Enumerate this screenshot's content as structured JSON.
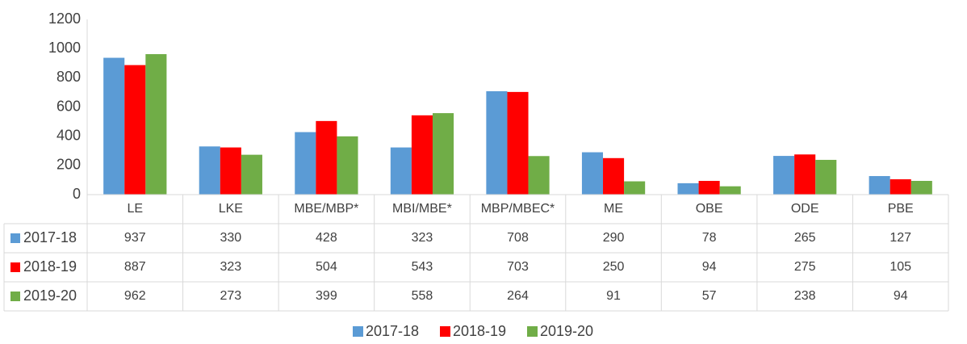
{
  "chart_data": {
    "type": "bar",
    "categories": [
      "LE",
      "LKE",
      "MBE/MBP*",
      "MBI/MBE*",
      "MBP/MBEC*",
      "ME",
      "OBE",
      "ODE",
      "PBE"
    ],
    "series": [
      {
        "name": "2017-18",
        "color": "#5b9bd5",
        "values": [
          937,
          330,
          428,
          323,
          708,
          290,
          78,
          265,
          127
        ]
      },
      {
        "name": "2018-19",
        "color": "#ff0000",
        "values": [
          887,
          323,
          504,
          543,
          703,
          250,
          94,
          275,
          105
        ]
      },
      {
        "name": "2019-20",
        "color": "#70ad47",
        "values": [
          962,
          273,
          399,
          558,
          264,
          91,
          57,
          238,
          94
        ]
      }
    ],
    "ylim": [
      0,
      1200
    ],
    "yticks": [
      0,
      200,
      400,
      600,
      800,
      1000,
      1200
    ],
    "grid": false,
    "legend": "bottom"
  }
}
